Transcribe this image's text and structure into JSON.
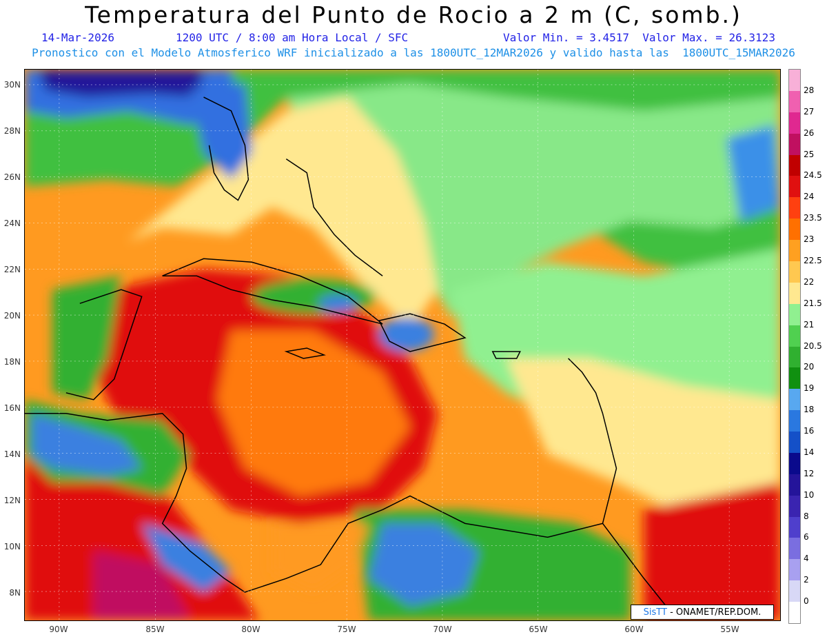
{
  "title": "Temperatura del Punto de Rocio a 2 m (C, somb.)",
  "line1": {
    "date": "14-Mar-2026",
    "time": "1200 UTC / 8:00 am Hora Local / SFC",
    "minmax": "Valor Min. = 3.4517  Valor Max. = 26.3123"
  },
  "line2": "Pronostico con el Modelo Atmosferico WRF inicializado a las 1800UTC_12MAR2026 y valido hasta las  1800UTC_15MAR2026",
  "lat_labels": [
    "30N",
    "28N",
    "26N",
    "24N",
    "22N",
    "20N",
    "18N",
    "16N",
    "14N",
    "12N",
    "10N",
    "8N"
  ],
  "lon_labels": [
    "90W",
    "85W",
    "80W",
    "75W",
    "70W",
    "65W",
    "60W",
    "55W"
  ],
  "colorbar": {
    "levels": [
      "0",
      "2",
      "4",
      "6",
      "8",
      "10",
      "12",
      "14",
      "16",
      "18",
      "19",
      "20",
      "20.5",
      "21",
      "21.5",
      "22",
      "22.5",
      "23",
      "23.5",
      "24",
      "24.5",
      "25",
      "26",
      "27",
      "28"
    ],
    "colors": [
      "#ffffff",
      "#d8d8f6",
      "#a8a0f0",
      "#7a6ee0",
      "#4f3fcc",
      "#3a24b0",
      "#24149a",
      "#0a0a8c",
      "#1450c8",
      "#2a78e0",
      "#58a8f0",
      "#109010",
      "#30b030",
      "#50d050",
      "#90f090",
      "#ffe890",
      "#ffc850",
      "#ffa020",
      "#ff7000",
      "#ff4010",
      "#e01010",
      "#c00000",
      "#c01060",
      "#e02890",
      "#f060b0",
      "#f8b0d8"
    ]
  },
  "colors": {
    "ocean_base": "#ff9010",
    "hot": "#e01010",
    "warm": "#ffe890",
    "green": "#30b030",
    "blue": "#2a78e0"
  },
  "credit": {
    "brand": "SisTT",
    "org": "- ONAMET/REP.DOM."
  }
}
